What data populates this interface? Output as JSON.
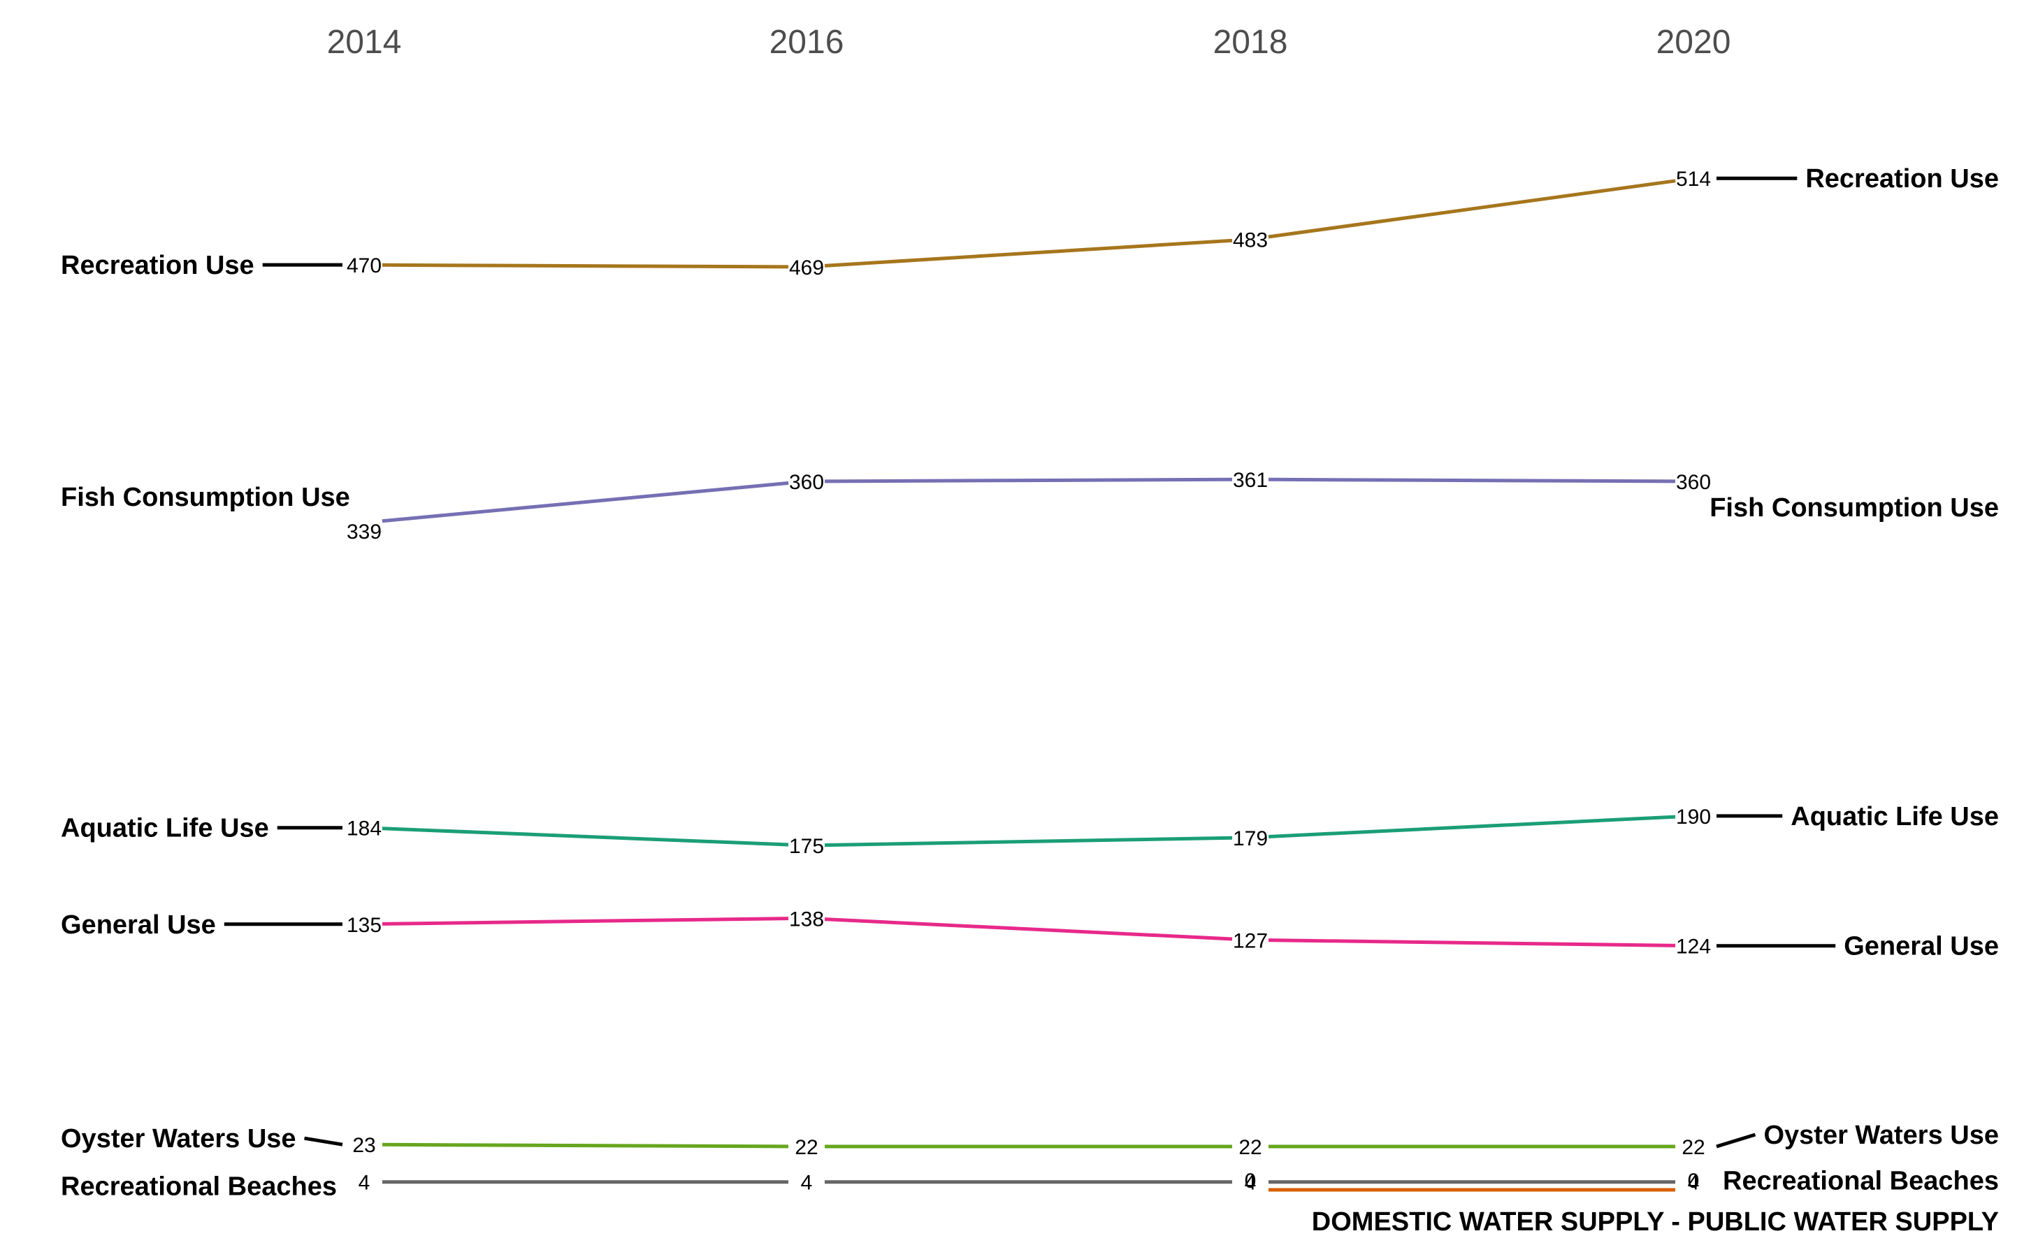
{
  "chart_data": {
    "type": "line",
    "title": "",
    "xlabel": "",
    "ylabel": "",
    "x": [
      "2014",
      "2016",
      "2018",
      "2020"
    ],
    "ylim": [
      0,
      540
    ],
    "grid": false,
    "legend": "direct-labels-both-sides",
    "series": [
      {
        "name": "Recreation Use",
        "color": "#a6761d",
        "values": [
          470,
          469,
          483,
          514
        ]
      },
      {
        "name": "Fish Consumption Use",
        "color": "#7570b3",
        "values": [
          339,
          360,
          361,
          360
        ]
      },
      {
        "name": "Aquatic Life Use",
        "color": "#1b9e77",
        "values": [
          184,
          175,
          179,
          190
        ]
      },
      {
        "name": "General Use",
        "color": "#e7298a",
        "values": [
          135,
          138,
          127,
          124
        ]
      },
      {
        "name": "Oyster Waters Use",
        "color": "#66a61e",
        "values": [
          23,
          22,
          22,
          22
        ]
      },
      {
        "name": "Recreational Beaches",
        "color": "#666666",
        "values": [
          4,
          4,
          4,
          4
        ]
      },
      {
        "name": "DOMESTIC WATER SUPPLY - PUBLIC WATER SUPPLY",
        "color": "#d95f02",
        "values": [
          null,
          null,
          0,
          0
        ]
      }
    ]
  }
}
